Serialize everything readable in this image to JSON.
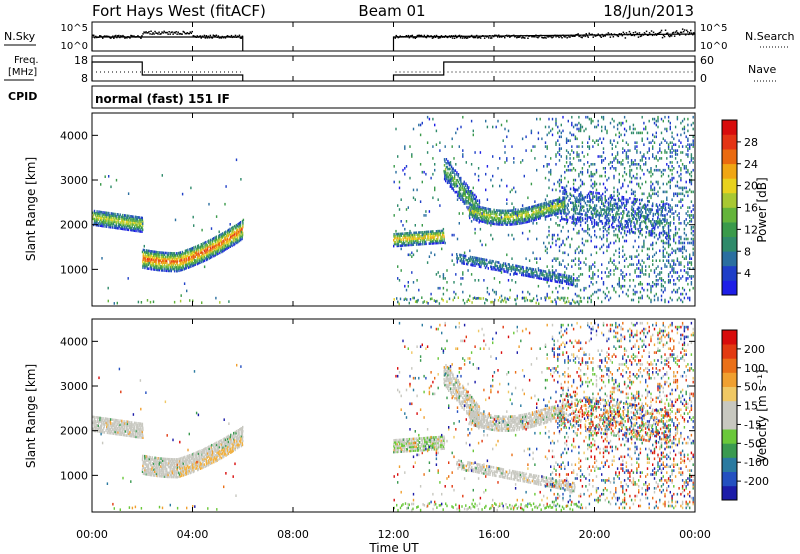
{
  "header": {
    "station": "Fort Hays West (fitACF)",
    "beam": "Beam 01",
    "date": "18/Jun/2013"
  },
  "nsky_panel": {
    "left_label": "N.Sky",
    "left_ticks": [
      "10^5",
      "10^0"
    ],
    "right_label": "N.Search",
    "right_ticks": [
      "10^5",
      "10^0"
    ]
  },
  "freq_panel": {
    "left_label_1": "Freq.",
    "left_label_2": "[MHz]",
    "left_ticks": [
      "18",
      "8"
    ],
    "right_label": "Nave",
    "right_ticks": [
      "60",
      "0"
    ]
  },
  "cpid": {
    "label": "CPID",
    "mode": "normal (fast) 151 IF"
  },
  "chart_data": [
    {
      "type": "heatmap",
      "name": "power",
      "ylabel": "Slant Range [km]",
      "yticks": [
        "4000",
        "3000",
        "2000",
        "1000"
      ],
      "ylim": [
        180,
        4500
      ],
      "colorbar": {
        "label": "Power [dB]",
        "ticks": [
          "28",
          "24",
          "20",
          "16",
          "12",
          "8",
          "4"
        ],
        "range": [
          0,
          30
        ],
        "colors": [
          "#1e1ee6",
          "#1f3fc8",
          "#2a6fa0",
          "#2f8a6a",
          "#3a9a4a",
          "#64b43a",
          "#a8c832",
          "#e8d21e",
          "#f0a614",
          "#ea6a10",
          "#e43414",
          "#d80c0c"
        ]
      }
    },
    {
      "type": "heatmap",
      "name": "velocity",
      "ylabel": "Slant Range [km]",
      "yticks": [
        "4000",
        "3000",
        "2000",
        "1000"
      ],
      "ylim": [
        180,
        4500
      ],
      "colorbar": {
        "label": "Velocity [m s⁻¹]",
        "ticks": [
          "200",
          "100",
          "50",
          "15",
          "-15",
          "-50",
          "-100",
          "-200"
        ],
        "range": [
          -250,
          250
        ],
        "colors": [
          "#1c1ca8",
          "#2450c0",
          "#2a7aa0",
          "#3a9a50",
          "#6ac83a",
          "#c8c8c0",
          "#c8c8c0",
          "#f0c864",
          "#f0a030",
          "#ea7018",
          "#e23a12",
          "#d80c0c"
        ]
      }
    }
  ],
  "time_axis": {
    "label": "Time UT",
    "ticks": [
      "00:00",
      "04:00",
      "08:00",
      "12:00",
      "16:00",
      "20:00",
      "00:00"
    ],
    "range_hours": [
      0,
      24
    ],
    "data_gap_hours": [
      6.0,
      12.0
    ]
  }
}
